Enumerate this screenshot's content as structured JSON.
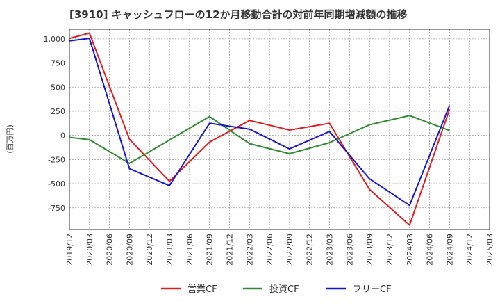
{
  "chart_data": {
    "type": "line",
    "title": "[3910]  キャッシュフローの12か月移動合計の対前年同期増減額の推移",
    "ylabel": "(百万円)",
    "xlabel": "",
    "ylim": [
      -975,
      1100
    ],
    "yticks": [
      -750,
      -500,
      -250,
      0,
      250,
      500,
      750,
      1000
    ],
    "ytick_labels": [
      "-750",
      "-500",
      "-250",
      "0",
      "250",
      "500",
      "750",
      "1,000"
    ],
    "categories": [
      "2019/12",
      "2020/03",
      "2020/06",
      "2020/09",
      "2020/12",
      "2021/03",
      "2021/06",
      "2021/09",
      "2021/12",
      "2022/03",
      "2022/06",
      "2022/09",
      "2022/12",
      "2023/03",
      "2023/06",
      "2023/09",
      "2023/12",
      "2024/03",
      "2024/06",
      "2024/09",
      "2024/12",
      "2025/03"
    ],
    "grid": true,
    "legend_position": "bottom",
    "series": [
      {
        "name": "営業CF",
        "color": "#e41a1c",
        "values": [
          1005,
          1060,
          null,
          -40,
          null,
          -475,
          null,
          -70,
          null,
          155,
          null,
          55,
          null,
          125,
          null,
          -560,
          null,
          -930,
          null,
          270,
          null,
          null
        ]
      },
      {
        "name": "投資CF",
        "color": "#2e8b2e",
        "values": [
          -20,
          -45,
          null,
          -290,
          null,
          null,
          null,
          195,
          null,
          -85,
          null,
          -190,
          null,
          -75,
          null,
          110,
          null,
          205,
          null,
          50,
          null,
          null
        ]
      },
      {
        "name": "フリーCF",
        "color": "#1515d0",
        "values": [
          980,
          1005,
          null,
          -345,
          null,
          -520,
          null,
          125,
          null,
          65,
          null,
          -140,
          null,
          40,
          null,
          -450,
          null,
          -725,
          null,
          310,
          null,
          null
        ]
      }
    ]
  }
}
